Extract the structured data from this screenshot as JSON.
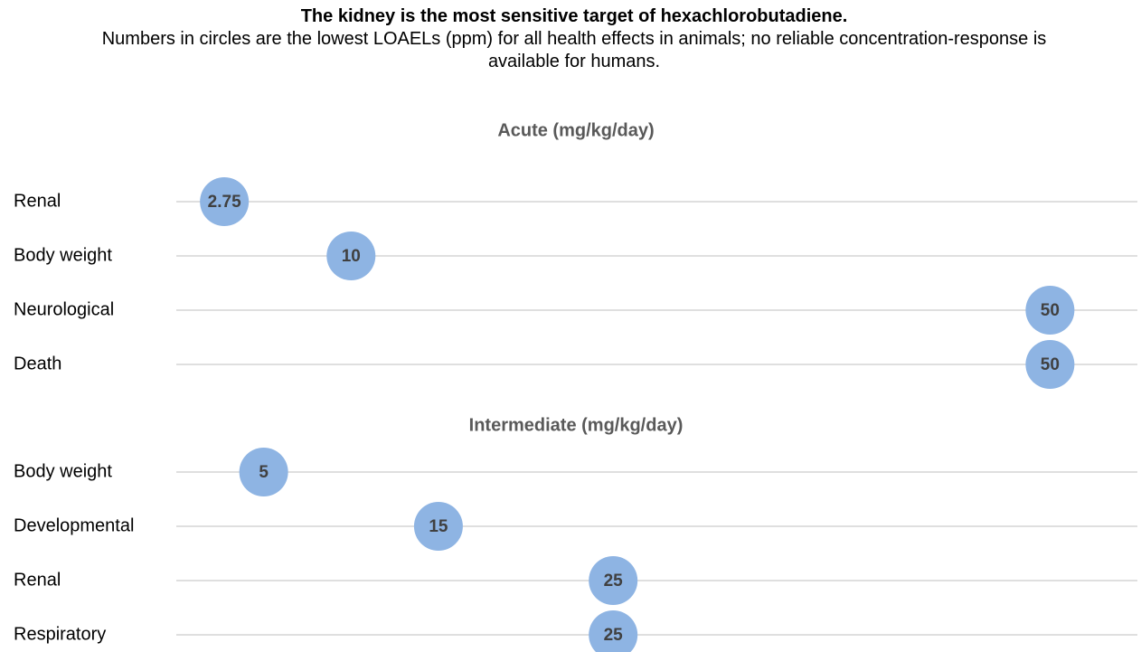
{
  "title": "The kidney is the most sensitive target of hexachlorobutadiene.",
  "subtitle": "Numbers in circles are the lowest LOAELs (ppm) for all health effects in animals; no reliable concentration-response is available for humans.",
  "chart_data": [
    {
      "type": "dot",
      "title": "Acute (mg/kg/day)",
      "categories": [
        "Renal",
        "Body weight",
        "Neurological",
        "Death"
      ],
      "values": [
        2.75,
        10,
        50,
        50
      ],
      "color": "#8eb4e3",
      "xlim": [
        0,
        55
      ]
    },
    {
      "type": "dot",
      "title": "Intermediate (mg/kg/day)",
      "categories": [
        "Body weight",
        "Developmental",
        "Renal",
        "Respiratory"
      ],
      "values": [
        5,
        15,
        25,
        25
      ],
      "color": "#8eb4e3",
      "xlim": [
        0,
        55
      ]
    }
  ]
}
